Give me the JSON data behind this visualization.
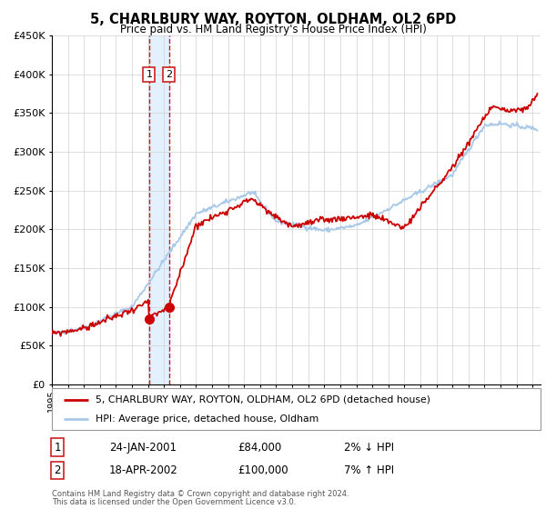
{
  "title": "5, CHARLBURY WAY, ROYTON, OLDHAM, OL2 6PD",
  "subtitle": "Price paid vs. HM Land Registry's House Price Index (HPI)",
  "legend_line1": "5, CHARLBURY WAY, ROYTON, OLDHAM, OL2 6PD (detached house)",
  "legend_line2": "HPI: Average price, detached house, Oldham",
  "footnote1": "Contains HM Land Registry data © Crown copyright and database right 2024.",
  "footnote2": "This data is licensed under the Open Government Licence v3.0.",
  "sale1_label": "1",
  "sale1_date": "24-JAN-2001",
  "sale1_price": "£84,000",
  "sale1_hpi": "2% ↓ HPI",
  "sale2_label": "2",
  "sale2_date": "18-APR-2002",
  "sale2_price": "£100,000",
  "sale2_hpi": "7% ↑ HPI",
  "sale1_year": 2001.07,
  "sale1_value": 84000,
  "sale2_year": 2002.3,
  "sale2_value": 100000,
  "hpi_color": "#a8c8e8",
  "price_color": "#cc0000",
  "sale_marker_color": "#cc0000",
  "shading_color": "#ddeeff",
  "background_color": "#ffffff",
  "ylim": [
    0,
    450000
  ],
  "xlim_start": 1995.0,
  "xlim_end": 2025.5
}
